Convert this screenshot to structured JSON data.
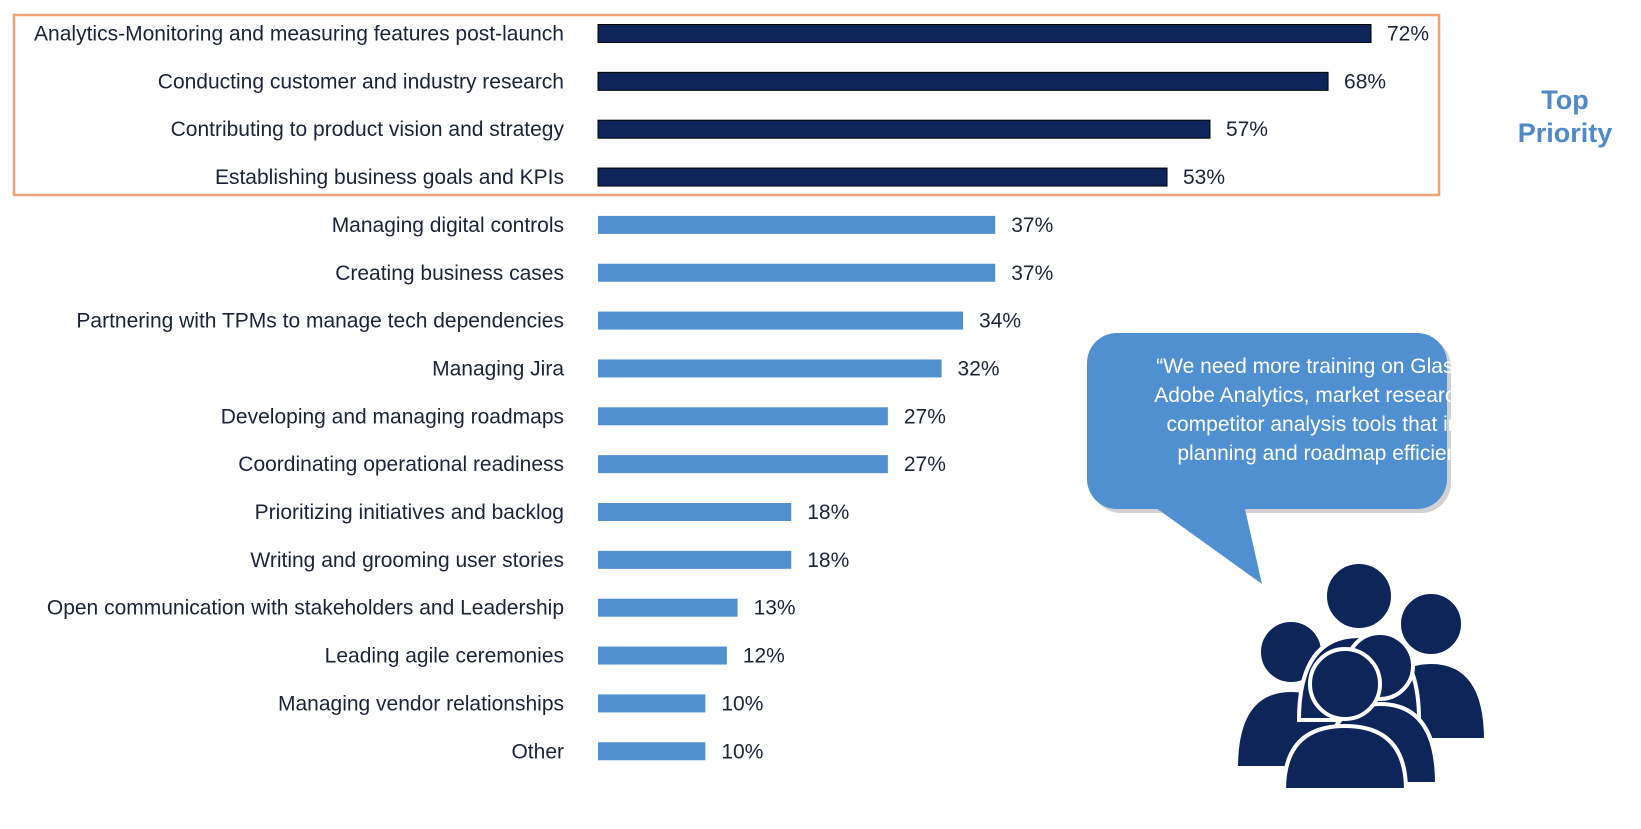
{
  "chart_data": {
    "type": "bar",
    "orientation": "horizontal",
    "title": "",
    "xlabel": "",
    "ylabel": "",
    "xlim": [
      0,
      100
    ],
    "categories": [
      "Analytics-Monitoring and measuring features post-launch",
      "Conducting customer and industry research",
      "Contributing to product vision and strategy",
      "Establishing business goals and KPIs",
      "Managing digital controls",
      "Creating business cases",
      "Partnering with TPMs to manage tech dependencies",
      "Managing Jira",
      "Developing and managing roadmaps",
      "Coordinating operational readiness",
      "Prioritizing initiatives and backlog",
      "Writing and grooming user stories",
      "Open communication with stakeholders and Leadership",
      "Leading agile ceremonies",
      "Managing vendor relationships",
      "Other"
    ],
    "values": [
      72,
      68,
      57,
      53,
      37,
      37,
      34,
      32,
      27,
      27,
      18,
      18,
      13,
      12,
      10,
      10
    ],
    "value_labels": [
      "72%",
      "68%",
      "57%",
      "53%",
      "37%",
      "37%",
      "34%",
      "32%",
      "27%",
      "27%",
      "18%",
      "18%",
      "13%",
      "12%",
      "10%",
      "10%"
    ],
    "highlight_count": 4,
    "highlight_label": [
      "Top",
      "Priority"
    ],
    "colors": {
      "highlight_bar": "#0d2559",
      "normal_bar": "#5190d0",
      "highlight_box": "#f0a07a",
      "highlight_text": "#4f89c9"
    }
  },
  "callout": {
    "quote": "“We need more training on Glass Box, Adobe Analytics, market research, and competitor analysis tools that inform planning and roadmap efficiency.”",
    "icon": "people-group-icon",
    "bubble_color": "#5190d0",
    "icon_color": "#0d2559"
  }
}
